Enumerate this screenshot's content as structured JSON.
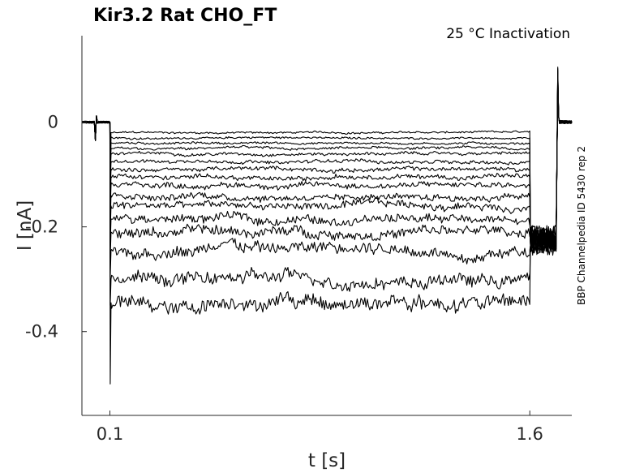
{
  "chart_data": {
    "type": "line",
    "title": "Kir3.2  Rat  CHO_FT",
    "subtitle": "25 °C  Inactivation",
    "side_label": "BBP Channelpedia ID 5430 rep 2",
    "xlabel": "t [s]",
    "ylabel": "I [nA]",
    "xlim": [
      0.0,
      1.75
    ],
    "ylim": [
      -0.56,
      0.165
    ],
    "x_ticks": [
      0.1,
      1.6
    ],
    "x_tick_labels": [
      "0.1",
      "1.6"
    ],
    "y_ticks": [
      0,
      -0.2,
      -0.4
    ],
    "y_tick_labels": [
      "0",
      "-0.2",
      "-0.4"
    ],
    "grid": false,
    "step_start_s": 0.1,
    "step_end_s": 1.6,
    "baseline_nA": 0.0,
    "series_step_levels_nA": [
      -0.02,
      -0.03,
      -0.04,
      -0.05,
      -0.06,
      -0.075,
      -0.09,
      -0.105,
      -0.12,
      -0.14,
      -0.16,
      -0.185,
      -0.21,
      -0.245,
      -0.3,
      -0.345
    ],
    "series_tail_levels_nA": [
      -0.21,
      -0.212,
      -0.214,
      -0.216,
      -0.218,
      -0.22,
      -0.222,
      -0.224,
      -0.226,
      -0.228,
      -0.23,
      -0.232,
      -0.234,
      -0.236,
      -0.238,
      -0.24
    ],
    "onset_transient_min_nA": -0.5,
    "offset_transient_max_nA": 0.105
  }
}
